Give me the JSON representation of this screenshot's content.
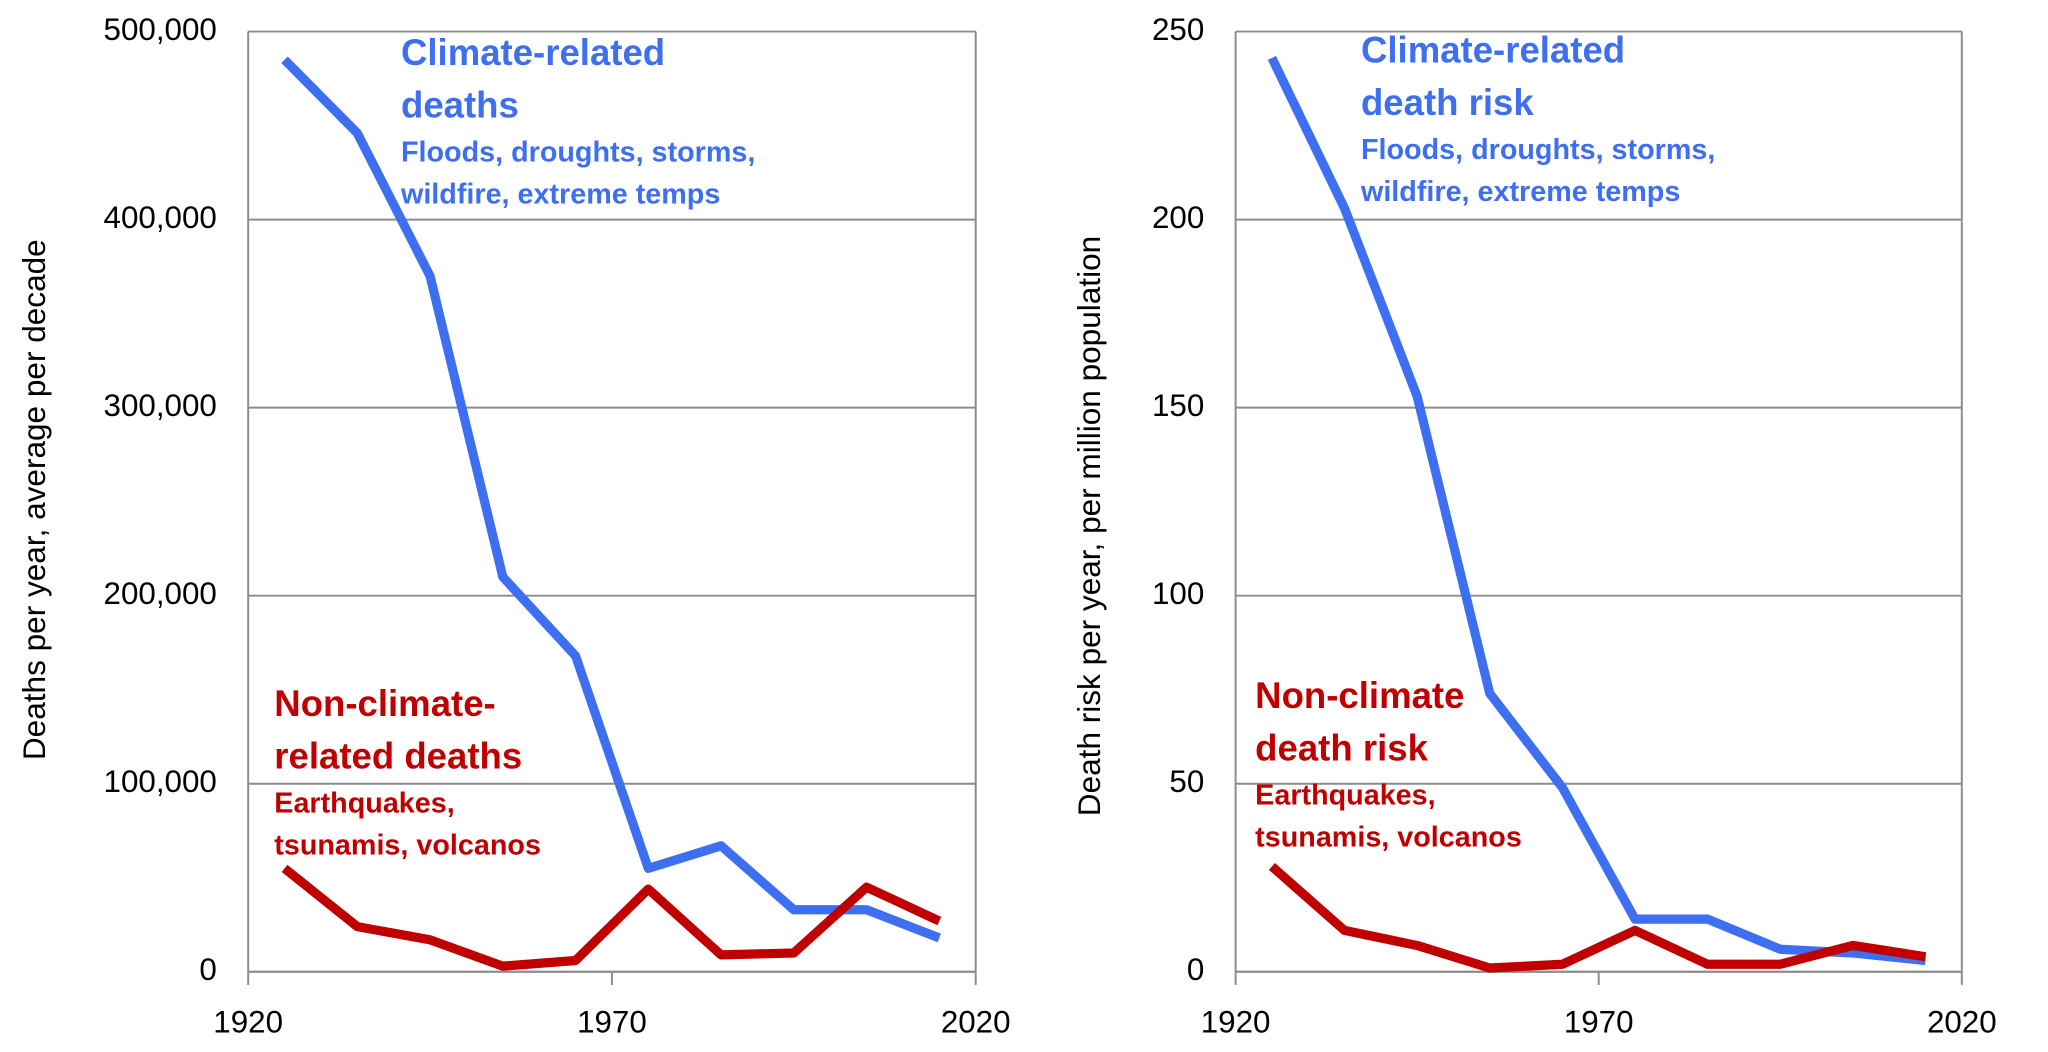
{
  "chart_data": [
    {
      "type": "line",
      "y_label": "Deaths per year, average per decade",
      "x": [
        1925,
        1935,
        1945,
        1955,
        1965,
        1975,
        1985,
        1995,
        2005,
        2015
      ],
      "series": [
        {
          "name": "Climate-related deaths",
          "color": "#3d6ff0",
          "values": [
            485000,
            446000,
            370000,
            210000,
            168000,
            55000,
            67000,
            33000,
            33000,
            18000
          ]
        },
        {
          "name": "Non-climate-related deaths",
          "color": "#c00000",
          "values": [
            55000,
            24000,
            17000,
            3000,
            6000,
            44000,
            9000,
            10000,
            45000,
            27000
          ]
        }
      ],
      "annotations": [
        {
          "color": "#3d6ff0",
          "title_lines": [
            "Climate-related",
            "deaths"
          ],
          "detail_lines": [
            "Floods, droughts, storms,",
            "wildfire, extreme temps"
          ]
        },
        {
          "color": "#c00000",
          "title_lines": [
            "Non-climate-",
            "related deaths"
          ],
          "detail_lines": [
            "Earthquakes,",
            "tsunamis, volcanos"
          ]
        }
      ],
      "xlim": [
        1920,
        2020
      ],
      "xticks": [
        1920,
        1970,
        2020
      ],
      "ylim": [
        0,
        500000
      ],
      "yticks": [
        0,
        {
          "value": 100000,
          "label": "100,000"
        },
        {
          "value": 200000,
          "label": "200,000"
        },
        {
          "value": 300000,
          "label": "300,000"
        },
        {
          "value": 400000,
          "label": "400,000"
        },
        {
          "value": 500000,
          "label": "500,000"
        }
      ],
      "grid": true
    },
    {
      "type": "line",
      "y_label": "Death risk per year, per million population",
      "x": [
        1925,
        1935,
        1945,
        1955,
        1965,
        1975,
        1985,
        1995,
        2005,
        2015
      ],
      "series": [
        {
          "name": "Climate-related death risk",
          "color": "#3d6ff0",
          "values": [
            243,
            203,
            153,
            74,
            49,
            14,
            14,
            6,
            5,
            3
          ]
        },
        {
          "name": "Non-climate death risk",
          "color": "#c00000",
          "values": [
            28,
            11,
            7,
            1,
            2,
            11,
            2,
            2,
            7,
            4
          ]
        }
      ],
      "annotations": [
        {
          "color": "#3d6ff0",
          "title_lines": [
            "Climate-related",
            "death risk"
          ],
          "detail_lines": [
            "Floods, droughts, storms,",
            "wildfire, extreme temps"
          ]
        },
        {
          "color": "#c00000",
          "title_lines": [
            "Non-climate",
            "death risk"
          ],
          "detail_lines": [
            "Earthquakes,",
            "tsunamis, volcanos"
          ]
        }
      ],
      "xlim": [
        1920,
        2020
      ],
      "xticks": [
        1920,
        1970,
        2020
      ],
      "ylim": [
        0,
        250
      ],
      "yticks": [
        0,
        50,
        100,
        150,
        200,
        250
      ],
      "grid": true
    }
  ]
}
